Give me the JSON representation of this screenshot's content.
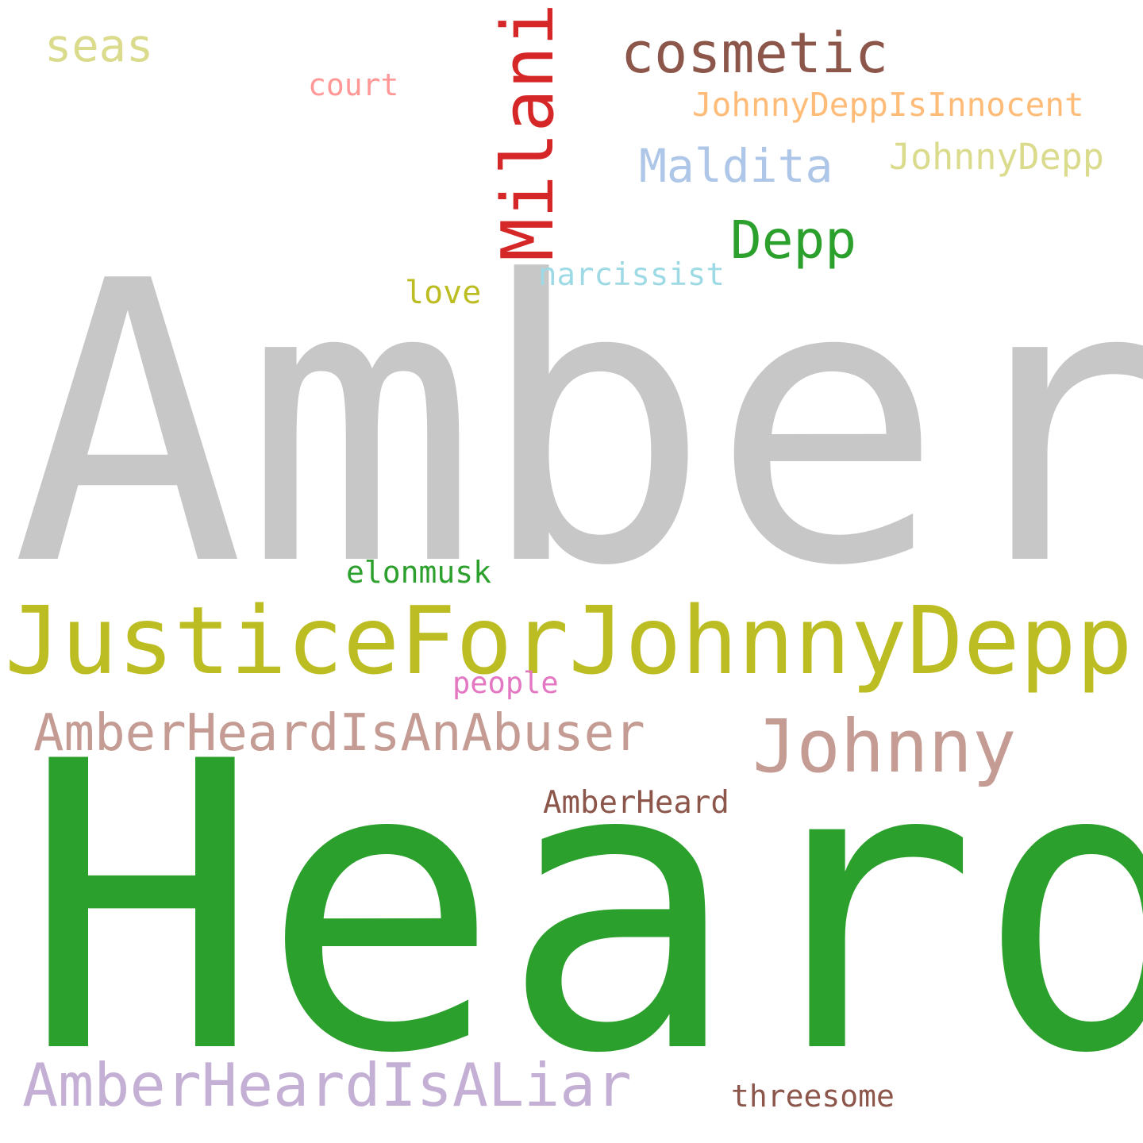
{
  "words": {
    "amber": {
      "text": "Amber",
      "color": "#c7c7c7"
    },
    "heard": {
      "text": "Heard",
      "color": "#2ca02c"
    },
    "justice": {
      "text": "JusticeForJohnnyDepp",
      "color": "#bcbd22"
    },
    "abuser": {
      "text": "AmberHeardIsAnAbuser",
      "color": "#c49c94"
    },
    "johnny": {
      "text": "Johnny",
      "color": "#c49c94"
    },
    "liar": {
      "text": "AmberHeardIsALiar",
      "color": "#c5b0d5"
    },
    "milani": {
      "text": "Milani",
      "color": "#d62728"
    },
    "cosmetic": {
      "text": "cosmetic",
      "color": "#8c564b"
    },
    "maldita": {
      "text": "Maldita",
      "color": "#aec7e8"
    },
    "depp": {
      "text": "Depp",
      "color": "#2ca02c"
    },
    "innocent": {
      "text": "JohnnyDeppIsInnocent",
      "color": "#ffbb78"
    },
    "johnnydepp": {
      "text": "JohnnyDepp",
      "color": "#dbdb8d"
    },
    "seas": {
      "text": "seas",
      "color": "#dbdb8d"
    },
    "court": {
      "text": "court",
      "color": "#ff9896"
    },
    "narcissist": {
      "text": "narcissist",
      "color": "#9edae5"
    },
    "love": {
      "text": "love",
      "color": "#bcbd22"
    },
    "elonmusk": {
      "text": "elonmusk",
      "color": "#2ca02c"
    },
    "people": {
      "text": "people",
      "color": "#e377c2"
    },
    "amberheard": {
      "text": "AmberHeard",
      "color": "#8c564b"
    },
    "threesome": {
      "text": "threesome",
      "color": "#8c564b"
    }
  }
}
